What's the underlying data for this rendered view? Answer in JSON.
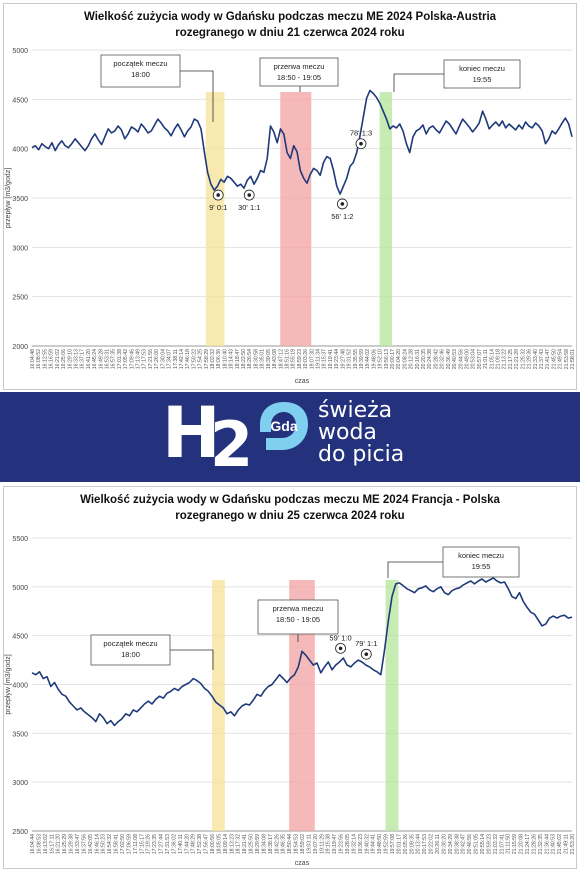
{
  "banner": {
    "h_text": "H",
    "two_text": "2",
    "logo_text": "Gda",
    "tagline": [
      "świeża",
      "woda",
      "do picia"
    ],
    "colors": {
      "background": "#24327d",
      "text": "#ffffff",
      "logo": "#7fd0f0"
    }
  },
  "chart_data": [
    {
      "type": "line",
      "title": [
        "Wielkość zużycia wody w Gdańsku podczas meczu ME 2024 Polska-Austria",
        "rozegranego w dniu 21 czerwca 2024 roku"
      ],
      "xlabel": "czas",
      "ylabel": "przepływ [m3/godz]",
      "ylim": [
        2000,
        5000
      ],
      "yticks": [
        2000,
        2500,
        3000,
        3500,
        4000,
        4500,
        5000
      ],
      "xticks": [
        "16:04:48",
        "16:08:52",
        "16:12:55",
        "16:16:59",
        "16:21:02",
        "16:25:06",
        "16:29:10",
        "16:33:13",
        "16:37:17",
        "16:41:20",
        "16:45:24",
        "16:49:28",
        "16:53:31",
        "16:57:35",
        "17:01:38",
        "17:05:42",
        "17:09:46",
        "17:13:49",
        "17:17:53",
        "17:21:56",
        "17:26:00",
        "17:30:04",
        "17:34:07",
        "17:38:11",
        "17:42:14",
        "17:46:18",
        "17:50:22",
        "17:54:25",
        "17:58:29",
        "18:02:32",
        "18:06:36",
        "18:10:40",
        "18:14:43",
        "18:18:47",
        "18:22:50",
        "18:26:54",
        "18:30:58",
        "18:35:01",
        "18:39:05",
        "18:43:08",
        "18:47:12",
        "18:51:16",
        "18:55:19",
        "18:59:23",
        "19:03:26",
        "19:07:30",
        "19:11:34",
        "19:15:37",
        "19:19:41",
        "19:23:44",
        "19:27:48",
        "19:31:52",
        "19:35:55",
        "19:39:59",
        "19:44:02",
        "19:48:06",
        "19:52:10",
        "19:56:13",
        "20:00:17",
        "20:04:20",
        "20:08:24",
        "20:12:28",
        "20:16:31",
        "20:20:35",
        "20:24:38",
        "20:28:42",
        "20:32:46",
        "20:36:49",
        "20:40:53",
        "20:44:56",
        "20:49:00",
        "20:53:04",
        "20:57:07",
        "21:01:11",
        "21:05:14",
        "21:09:18",
        "21:13:22",
        "21:17:25",
        "21:21:29",
        "21:25:32",
        "21:29:36",
        "21:33:40",
        "21:37:43",
        "21:41:47",
        "21:45:50",
        "21:49:54",
        "21:53:58",
        "21:58:01"
      ],
      "series": [
        {
          "values": [
            4010,
            4030,
            3990,
            4050,
            4020,
            4000,
            4060,
            3980,
            4040,
            4080,
            4030,
            4010,
            4050,
            4100,
            4060,
            4020,
            3980,
            4030,
            4100,
            4150,
            4090,
            4040,
            4120,
            4200,
            4160,
            4180,
            4230,
            4190,
            4100,
            4150,
            4220,
            4200,
            4170,
            4250,
            4210,
            4160,
            4180,
            4240,
            4300,
            4260,
            4210,
            4180,
            4130,
            4200,
            4250,
            4190,
            4120,
            4180,
            4220,
            4300,
            4280,
            4200,
            3970,
            3760,
            3640,
            3580,
            3620,
            3690,
            3660,
            3720,
            3700,
            3660,
            3620,
            3640,
            3600,
            3680,
            3720,
            3640,
            3700,
            3780,
            3760,
            3900,
            4230,
            4170,
            4060,
            4200,
            4150,
            3960,
            3900,
            4030,
            3970,
            3780,
            3700,
            3650,
            3740,
            3800,
            3780,
            3730,
            3860,
            3920,
            3900,
            3780,
            3620,
            3540,
            3620,
            3700,
            3820,
            3860,
            3960,
            4130,
            4320,
            4510,
            4590,
            4560,
            4520,
            4460,
            4380,
            4300,
            4200,
            4230,
            4210,
            4250,
            4180,
            4050,
            3960,
            4120,
            4180,
            4200,
            4240,
            4150,
            4210,
            4230,
            4190,
            4160,
            4220,
            4280,
            4250,
            4200,
            4150,
            4230,
            4300,
            4260,
            4220,
            4170,
            4210,
            4260,
            4380,
            4300,
            4200,
            4240,
            4270,
            4230,
            4280,
            4210,
            4250,
            4220,
            4190,
            4240,
            4200,
            4270,
            4230,
            4210,
            4260,
            4230,
            4180,
            4050,
            4100,
            4180,
            4150,
            4200,
            4260,
            4310,
            4250,
            4120
          ]
        }
      ],
      "bands": [
        {
          "label": "początek meczu",
          "time": "18:00",
          "color": "#f5e49c",
          "x_start": "17:58:29",
          "x_end": "18:10:40"
        },
        {
          "label": "przerwa meczu",
          "time": "18:50 - 19:05",
          "color": "#f4a8a8",
          "x_start": "18:47:12",
          "x_end": "19:07:30"
        },
        {
          "label": "koniec meczu",
          "time": "19:55",
          "color": "#b8e6a0",
          "x_start": "19:52:10",
          "x_end": "20:00:17"
        }
      ],
      "annotations": [
        {
          "text": "9' 0:1",
          "x": "18:06:36",
          "y": 3530
        },
        {
          "text": "30' 1:1",
          "x": "18:26:54",
          "y": 3530
        },
        {
          "text": "56' 1:2",
          "x": "19:27:48",
          "y": 3440
        },
        {
          "text": "78' 1:3",
          "x": "19:40:00",
          "y": 4050
        }
      ],
      "grid": true,
      "line_color": "#1f3a7a"
    },
    {
      "type": "line",
      "title": [
        "Wielkość zużycia wody w Gdańsku podczas meczu ME 2024 Francja - Polska",
        "rozegranego w dniu 25 czerwca 2024 roku"
      ],
      "xlabel": "czas",
      "ylabel": "przepływ [m3/godz]",
      "ylim": [
        2500,
        5500
      ],
      "yticks": [
        2500,
        3000,
        3500,
        4000,
        4500,
        5000,
        5500
      ],
      "xticks": [
        "16:04:44",
        "16:08:53",
        "16:13:02",
        "16:17:11",
        "16:21:20",
        "16:25:29",
        "16:29:38",
        "16:33:47",
        "16:37:56",
        "16:42:05",
        "16:46:14",
        "16:50:23",
        "16:54:32",
        "16:58:41",
        "17:02:50",
        "17:06:59",
        "17:11:08",
        "17:15:17",
        "17:19:26",
        "17:23:35",
        "17:27:44",
        "17:31:53",
        "17:36:02",
        "17:40:11",
        "17:44:20",
        "17:48:29",
        "17:52:38",
        "17:56:47",
        "18:00:56",
        "18:05:05",
        "18:09:14",
        "18:13:23",
        "18:17:32",
        "18:21:41",
        "18:25:50",
        "18:29:59",
        "18:34:08",
        "18:38:17",
        "18:42:26",
        "18:46:35",
        "18:50:44",
        "18:54:53",
        "18:59:02",
        "19:03:11",
        "19:07:20",
        "19:11:29",
        "19:15:38",
        "19:19:47",
        "19:23:56",
        "19:28:05",
        "19:32:14",
        "19:36:23",
        "19:40:32",
        "19:44:41",
        "19:48:50",
        "19:52:59",
        "19:57:08",
        "20:01:17",
        "20:05:26",
        "20:09:35",
        "20:13:44",
        "20:17:53",
        "20:22:02",
        "20:26:11",
        "20:30:20",
        "20:34:29",
        "20:38:38",
        "20:42:47",
        "20:46:56",
        "20:51:05",
        "20:55:14",
        "20:59:23",
        "21:03:32",
        "21:07:41",
        "21:11:50",
        "21:15:59",
        "21:20:08",
        "21:24:17",
        "21:28:26",
        "21:32:35",
        "21:36:44",
        "21:40:53",
        "21:45:02",
        "21:49:11",
        "21:53:20"
      ],
      "series": [
        {
          "values": [
            4120,
            4100,
            4130,
            4060,
            4080,
            3980,
            4020,
            3950,
            3900,
            3880,
            3820,
            3780,
            3740,
            3760,
            3720,
            3690,
            3660,
            3620,
            3700,
            3660,
            3600,
            3630,
            3580,
            3620,
            3650,
            3700,
            3680,
            3740,
            3720,
            3760,
            3800,
            3830,
            3800,
            3850,
            3880,
            3860,
            3910,
            3930,
            3960,
            3940,
            3980,
            4000,
            4020,
            4060,
            4040,
            4010,
            3960,
            3930,
            3880,
            3820,
            3790,
            3760,
            3700,
            3720,
            3680,
            3740,
            3780,
            3800,
            3790,
            3840,
            3900,
            3880,
            3940,
            3980,
            4000,
            4050,
            4100,
            4060,
            4020,
            4070,
            4100,
            4180,
            4340,
            4300,
            4250,
            4200,
            4220,
            4120,
            4180,
            4230,
            4150,
            4200,
            4230,
            4270,
            4200,
            4180,
            4220,
            4250,
            4230,
            4200,
            4180,
            4150,
            4130,
            4100,
            4350,
            4650,
            4900,
            5030,
            5040,
            5010,
            4980,
            4960,
            4940,
            4980,
            4990,
            5010,
            4970,
            4950,
            4980,
            5000,
            4940,
            4920,
            4960,
            4980,
            4990,
            5020,
            5040,
            5060,
            5030,
            5060,
            5080,
            5050,
            5070,
            5090,
            5060,
            5040,
            5050,
            4980,
            4900,
            4880,
            4940,
            4850,
            4790,
            4740,
            4720,
            4660,
            4600,
            4620,
            4680,
            4700,
            4680,
            4700,
            4710,
            4680,
            4690
          ]
        }
      ],
      "bands": [
        {
          "label": "początek meczu",
          "time": "18:00",
          "color": "#f5e49c",
          "x_start": "18:00:56",
          "x_end": "18:09:14"
        },
        {
          "label": "przerwa meczu",
          "time": "18:50 - 19:05",
          "color": "#f4a8a8",
          "x_start": "18:50:44",
          "x_end": "19:07:20"
        },
        {
          "label": "koniec meczu",
          "time": "19:55",
          "color": "#b8e6a0",
          "x_start": "19:52:59",
          "x_end": "20:01:17"
        }
      ],
      "annotations": [
        {
          "text": "59' 1:0",
          "x": "19:23:56",
          "y": 4370
        },
        {
          "text": "79' 1:1",
          "x": "19:40:32",
          "y": 4310
        }
      ],
      "grid": true,
      "line_color": "#1f3a7a"
    }
  ]
}
